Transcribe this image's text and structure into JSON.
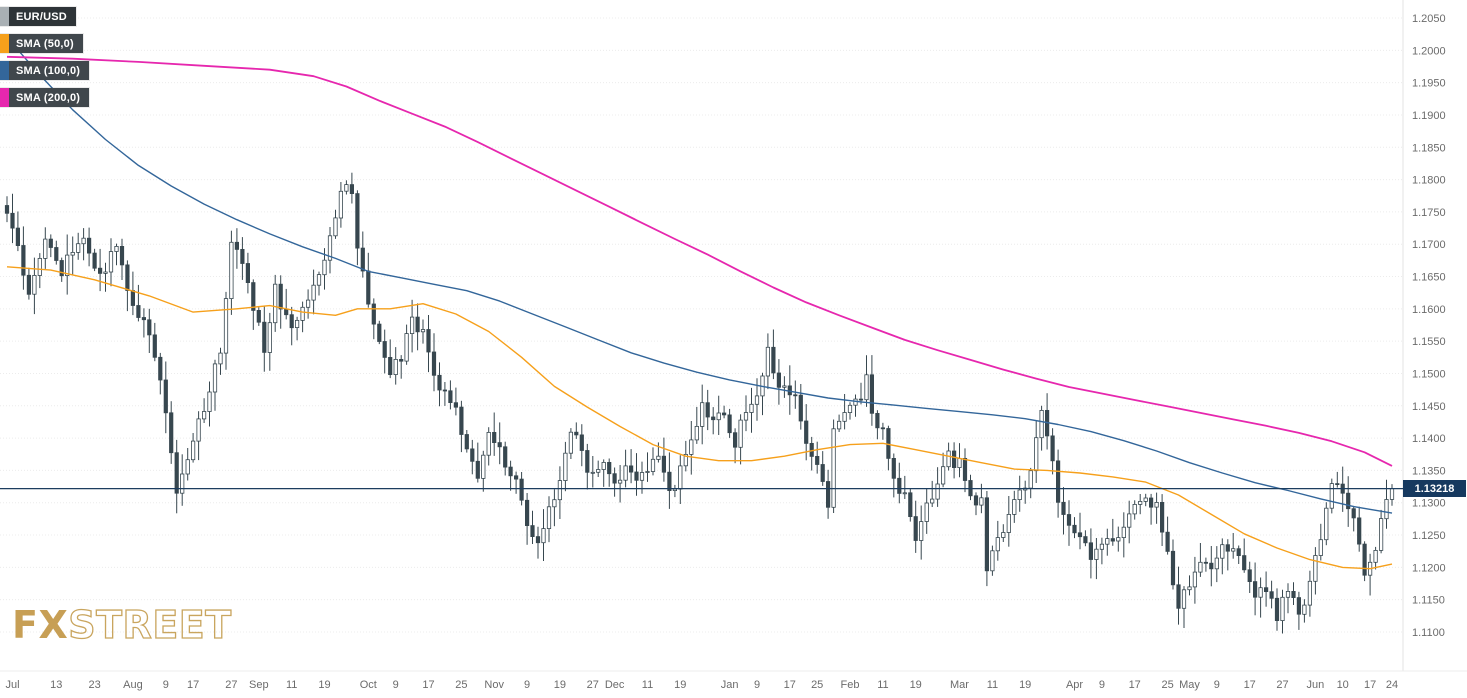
{
  "header": {
    "pair": "EUR/USD"
  },
  "legend": {
    "items": [
      {
        "label": "EUR/USD",
        "chip": "#a9b0b4",
        "body": "#2e3438"
      },
      {
        "label": "SMA (50,0)",
        "chip": "#f6a01b",
        "body": "#40474c"
      },
      {
        "label": "SMA (100,0)",
        "chip": "#33669a",
        "body": "#40474c"
      },
      {
        "label": "SMA (200,0)",
        "chip": "#e627ae",
        "body": "#40474c"
      }
    ]
  },
  "watermark": {
    "fx": "FX",
    "street": "STREET"
  },
  "price_axis": {
    "current_price_label": "1.13218",
    "tag_background": "#16395f"
  },
  "chart_data": {
    "type": "candlestick",
    "pair": "EUR/USD",
    "title": "EUR/USD daily candlestick chart with SMA(50), SMA(100), SMA(200) overlays",
    "current_price": 1.13218,
    "num_candles": 254,
    "y_axis": {
      "min": 1.11,
      "max": 1.205,
      "step": 0.005,
      "tick_labels": [
        "1.2050",
        "1.2000",
        "1.1950",
        "1.1900",
        "1.1850",
        "1.1800",
        "1.1750",
        "1.1700",
        "1.1650",
        "1.1600",
        "1.1550",
        "1.1500",
        "1.1450",
        "1.1400",
        "1.1350",
        "1.1300",
        "1.1250",
        "1.1200",
        "1.1150",
        "1.1100"
      ]
    },
    "x_axis": {
      "labels": [
        {
          "t": "Jul",
          "d": 1
        },
        {
          "t": "13",
          "d": 9
        },
        {
          "t": "23",
          "d": 16
        },
        {
          "t": "Aug",
          "d": 23
        },
        {
          "t": "9",
          "d": 29
        },
        {
          "t": "17",
          "d": 34
        },
        {
          "t": "27",
          "d": 41
        },
        {
          "t": "Sep",
          "d": 46
        },
        {
          "t": "11",
          "d": 52
        },
        {
          "t": "19",
          "d": 58
        },
        {
          "t": "Oct",
          "d": 66
        },
        {
          "t": "9",
          "d": 71
        },
        {
          "t": "17",
          "d": 77
        },
        {
          "t": "25",
          "d": 83
        },
        {
          "t": "Nov",
          "d": 89
        },
        {
          "t": "9",
          "d": 95
        },
        {
          "t": "19",
          "d": 101
        },
        {
          "t": "27",
          "d": 107
        },
        {
          "t": "Dec",
          "d": 111
        },
        {
          "t": "11",
          "d": 117
        },
        {
          "t": "19",
          "d": 123
        },
        {
          "t": "Jan",
          "d": 132
        },
        {
          "t": "9",
          "d": 137
        },
        {
          "t": "17",
          "d": 143
        },
        {
          "t": "25",
          "d": 148
        },
        {
          "t": "Feb",
          "d": 154
        },
        {
          "t": "11",
          "d": 160
        },
        {
          "t": "19",
          "d": 166
        },
        {
          "t": "Mar",
          "d": 174
        },
        {
          "t": "11",
          "d": 180
        },
        {
          "t": "19",
          "d": 186
        },
        {
          "t": "Apr",
          "d": 195
        },
        {
          "t": "9",
          "d": 200
        },
        {
          "t": "17",
          "d": 206
        },
        {
          "t": "25",
          "d": 212
        },
        {
          "t": "May",
          "d": 216
        },
        {
          "t": "9",
          "d": 221
        },
        {
          "t": "17",
          "d": 227
        },
        {
          "t": "27",
          "d": 233
        },
        {
          "t": "Jun",
          "d": 239
        },
        {
          "t": "10",
          "d": 244
        },
        {
          "t": "17",
          "d": 249
        },
        {
          "t": "24",
          "d": 253
        }
      ]
    },
    "close_keyframes": [
      [
        0,
        1.175
      ],
      [
        2,
        1.169
      ],
      [
        4,
        1.163
      ],
      [
        7,
        1.17
      ],
      [
        10,
        1.166
      ],
      [
        14,
        1.172
      ],
      [
        17,
        1.165
      ],
      [
        20,
        1.17
      ],
      [
        23,
        1.16
      ],
      [
        26,
        1.156
      ],
      [
        29,
        1.145
      ],
      [
        31,
        1.131
      ],
      [
        33,
        1.136
      ],
      [
        36,
        1.145
      ],
      [
        39,
        1.154
      ],
      [
        41,
        1.17
      ],
      [
        43,
        1.167
      ],
      [
        45,
        1.16
      ],
      [
        47,
        1.154
      ],
      [
        49,
        1.163
      ],
      [
        52,
        1.156
      ],
      [
        55,
        1.162
      ],
      [
        58,
        1.167
      ],
      [
        60,
        1.175
      ],
      [
        62,
        1.18
      ],
      [
        63,
        1.177
      ],
      [
        64,
        1.17
      ],
      [
        66,
        1.16
      ],
      [
        68,
        1.155
      ],
      [
        70,
        1.15
      ],
      [
        72,
        1.153
      ],
      [
        74,
        1.159
      ],
      [
        76,
        1.156
      ],
      [
        78,
        1.15
      ],
      [
        80,
        1.147
      ],
      [
        82,
        1.144
      ],
      [
        84,
        1.139
      ],
      [
        86,
        1.134
      ],
      [
        88,
        1.14
      ],
      [
        90,
        1.138
      ],
      [
        93,
        1.133
      ],
      [
        95,
        1.126
      ],
      [
        97,
        1.123
      ],
      [
        99,
        1.13
      ],
      [
        101,
        1.133
      ],
      [
        103,
        1.142
      ],
      [
        105,
        1.137
      ],
      [
        107,
        1.134
      ],
      [
        109,
        1.137
      ],
      [
        111,
        1.132
      ],
      [
        113,
        1.136
      ],
      [
        115,
        1.133
      ],
      [
        117,
        1.1355
      ],
      [
        119,
        1.138
      ],
      [
        121,
        1.131
      ],
      [
        123,
        1.135
      ],
      [
        125,
        1.139
      ],
      [
        127,
        1.145
      ],
      [
        129,
        1.143
      ],
      [
        131,
        1.1445
      ],
      [
        133,
        1.139
      ],
      [
        135,
        1.145
      ],
      [
        137,
        1.147
      ],
      [
        139,
        1.154
      ],
      [
        140,
        1.15
      ],
      [
        142,
        1.147
      ],
      [
        144,
        1.146
      ],
      [
        146,
        1.139
      ],
      [
        148,
        1.136
      ],
      [
        150,
        1.13
      ],
      [
        151,
        1.141
      ],
      [
        153,
        1.143
      ],
      [
        155,
        1.145
      ],
      [
        157,
        1.149
      ],
      [
        158,
        1.144
      ],
      [
        160,
        1.141
      ],
      [
        162,
        1.134
      ],
      [
        164,
        1.131
      ],
      [
        166,
        1.124
      ],
      [
        168,
        1.129
      ],
      [
        170,
        1.133
      ],
      [
        172,
        1.137
      ],
      [
        174,
        1.136
      ],
      [
        176,
        1.131
      ],
      [
        178,
        1.13
      ],
      [
        179,
        1.119
      ],
      [
        181,
        1.124
      ],
      [
        183,
        1.128
      ],
      [
        185,
        1.132
      ],
      [
        187,
        1.134
      ],
      [
        189,
        1.144
      ],
      [
        190,
        1.141
      ],
      [
        191,
        1.137
      ],
      [
        192,
        1.13
      ],
      [
        194,
        1.126
      ],
      [
        196,
        1.124
      ],
      [
        198,
        1.122
      ],
      [
        200,
        1.124
      ],
      [
        202,
        1.123
      ],
      [
        204,
        1.126
      ],
      [
        206,
        1.129
      ],
      [
        208,
        1.13
      ],
      [
        210,
        1.129
      ],
      [
        212,
        1.123
      ],
      [
        214,
        1.113
      ],
      [
        216,
        1.118
      ],
      [
        218,
        1.121
      ],
      [
        220,
        1.119
      ],
      [
        222,
        1.123
      ],
      [
        224,
        1.122
      ],
      [
        226,
        1.12
      ],
      [
        228,
        1.116
      ],
      [
        230,
        1.117
      ],
      [
        232,
        1.112
      ],
      [
        234,
        1.117
      ],
      [
        236,
        1.113
      ],
      [
        238,
        1.117
      ],
      [
        240,
        1.125
      ],
      [
        242,
        1.133
      ],
      [
        244,
        1.131
      ],
      [
        246,
        1.128
      ],
      [
        248,
        1.119
      ],
      [
        250,
        1.123
      ],
      [
        252,
        1.13
      ],
      [
        253,
        1.13218
      ]
    ],
    "sma": [
      {
        "name": "SMA (50,0)",
        "period": 50,
        "color": "#f6a01b",
        "width": 1.4,
        "points": [
          [
            0,
            1.1665
          ],
          [
            8,
            1.166
          ],
          [
            16,
            1.1645
          ],
          [
            26,
            1.162
          ],
          [
            34,
            1.1595
          ],
          [
            42,
            1.16
          ],
          [
            48,
            1.1605
          ],
          [
            54,
            1.1595
          ],
          [
            60,
            1.159
          ],
          [
            64,
            1.16
          ],
          [
            70,
            1.16
          ],
          [
            76,
            1.1608
          ],
          [
            82,
            1.1592
          ],
          [
            88,
            1.1565
          ],
          [
            94,
            1.1525
          ],
          [
            100,
            1.148
          ],
          [
            106,
            1.1448
          ],
          [
            112,
            1.1418
          ],
          [
            118,
            1.139
          ],
          [
            124,
            1.1372
          ],
          [
            130,
            1.1365
          ],
          [
            136,
            1.1365
          ],
          [
            142,
            1.1372
          ],
          [
            148,
            1.1382
          ],
          [
            154,
            1.139
          ],
          [
            160,
            1.1392
          ],
          [
            166,
            1.1382
          ],
          [
            172,
            1.1372
          ],
          [
            178,
            1.1362
          ],
          [
            184,
            1.1352
          ],
          [
            190,
            1.135
          ],
          [
            196,
            1.1346
          ],
          [
            202,
            1.134
          ],
          [
            208,
            1.1332
          ],
          [
            214,
            1.1312
          ],
          [
            220,
            1.1282
          ],
          [
            226,
            1.1252
          ],
          [
            232,
            1.123
          ],
          [
            238,
            1.1212
          ],
          [
            244,
            1.12
          ],
          [
            249,
            1.1198
          ],
          [
            253,
            1.1205
          ]
        ]
      },
      {
        "name": "SMA (100,0)",
        "period": 100,
        "color": "#33669a",
        "width": 1.4,
        "points": [
          [
            0,
            1.202
          ],
          [
            6,
            1.1962
          ],
          [
            12,
            1.1908
          ],
          [
            18,
            1.1862
          ],
          [
            24,
            1.1822
          ],
          [
            30,
            1.179
          ],
          [
            36,
            1.1762
          ],
          [
            42,
            1.1738
          ],
          [
            48,
            1.1716
          ],
          [
            54,
            1.1696
          ],
          [
            60,
            1.1678
          ],
          [
            66,
            1.1658
          ],
          [
            72,
            1.1648
          ],
          [
            78,
            1.1638
          ],
          [
            84,
            1.1628
          ],
          [
            90,
            1.1612
          ],
          [
            96,
            1.1592
          ],
          [
            102,
            1.1572
          ],
          [
            108,
            1.1552
          ],
          [
            114,
            1.1532
          ],
          [
            120,
            1.1516
          ],
          [
            126,
            1.1502
          ],
          [
            132,
            1.149
          ],
          [
            138,
            1.148
          ],
          [
            144,
            1.1471
          ],
          [
            150,
            1.1462
          ],
          [
            156,
            1.1456
          ],
          [
            162,
            1.1451
          ],
          [
            168,
            1.1446
          ],
          [
            174,
            1.1441
          ],
          [
            180,
            1.1436
          ],
          [
            186,
            1.143
          ],
          [
            192,
            1.1421
          ],
          [
            198,
            1.141
          ],
          [
            204,
            1.1396
          ],
          [
            210,
            1.138
          ],
          [
            216,
            1.1362
          ],
          [
            222,
            1.1346
          ],
          [
            228,
            1.1331
          ],
          [
            234,
            1.1319
          ],
          [
            240,
            1.1306
          ],
          [
            246,
            1.1294
          ],
          [
            253,
            1.1284
          ]
        ]
      },
      {
        "name": "SMA (200,0)",
        "period": 200,
        "color": "#e627ae",
        "width": 1.8,
        "points": [
          [
            0,
            1.199
          ],
          [
            12,
            1.1987
          ],
          [
            24,
            1.1982
          ],
          [
            36,
            1.1976
          ],
          [
            48,
            1.197
          ],
          [
            56,
            1.196
          ],
          [
            62,
            1.1944
          ],
          [
            68,
            1.1922
          ],
          [
            74,
            1.1902
          ],
          [
            80,
            1.1882
          ],
          [
            86,
            1.1858
          ],
          [
            92,
            1.1833
          ],
          [
            98,
            1.1808
          ],
          [
            104,
            1.1783
          ],
          [
            110,
            1.1758
          ],
          [
            116,
            1.1733
          ],
          [
            122,
            1.1708
          ],
          [
            128,
            1.1684
          ],
          [
            134,
            1.1658
          ],
          [
            140,
            1.1633
          ],
          [
            146,
            1.161
          ],
          [
            152,
            1.159
          ],
          [
            158,
            1.1571
          ],
          [
            164,
            1.1552
          ],
          [
            170,
            1.1536
          ],
          [
            176,
            1.1521
          ],
          [
            182,
            1.1506
          ],
          [
            188,
            1.1492
          ],
          [
            194,
            1.1479
          ],
          [
            200,
            1.1469
          ],
          [
            206,
            1.1459
          ],
          [
            212,
            1.1449
          ],
          [
            218,
            1.1439
          ],
          [
            224,
            1.1429
          ],
          [
            230,
            1.1419
          ],
          [
            236,
            1.1408
          ],
          [
            242,
            1.1395
          ],
          [
            248,
            1.1378
          ],
          [
            253,
            1.1357
          ]
        ]
      }
    ],
    "colors": {
      "candle_up": "#ffffff",
      "candle_down": "#37474f",
      "wick": "#37474f",
      "current_price_line": "#1c3d5f",
      "grid": "#ececec",
      "axis_text": "#6b6b6b",
      "background": "#ffffff"
    },
    "legend_position": "top-left",
    "grid": "horizontal-dotted"
  }
}
